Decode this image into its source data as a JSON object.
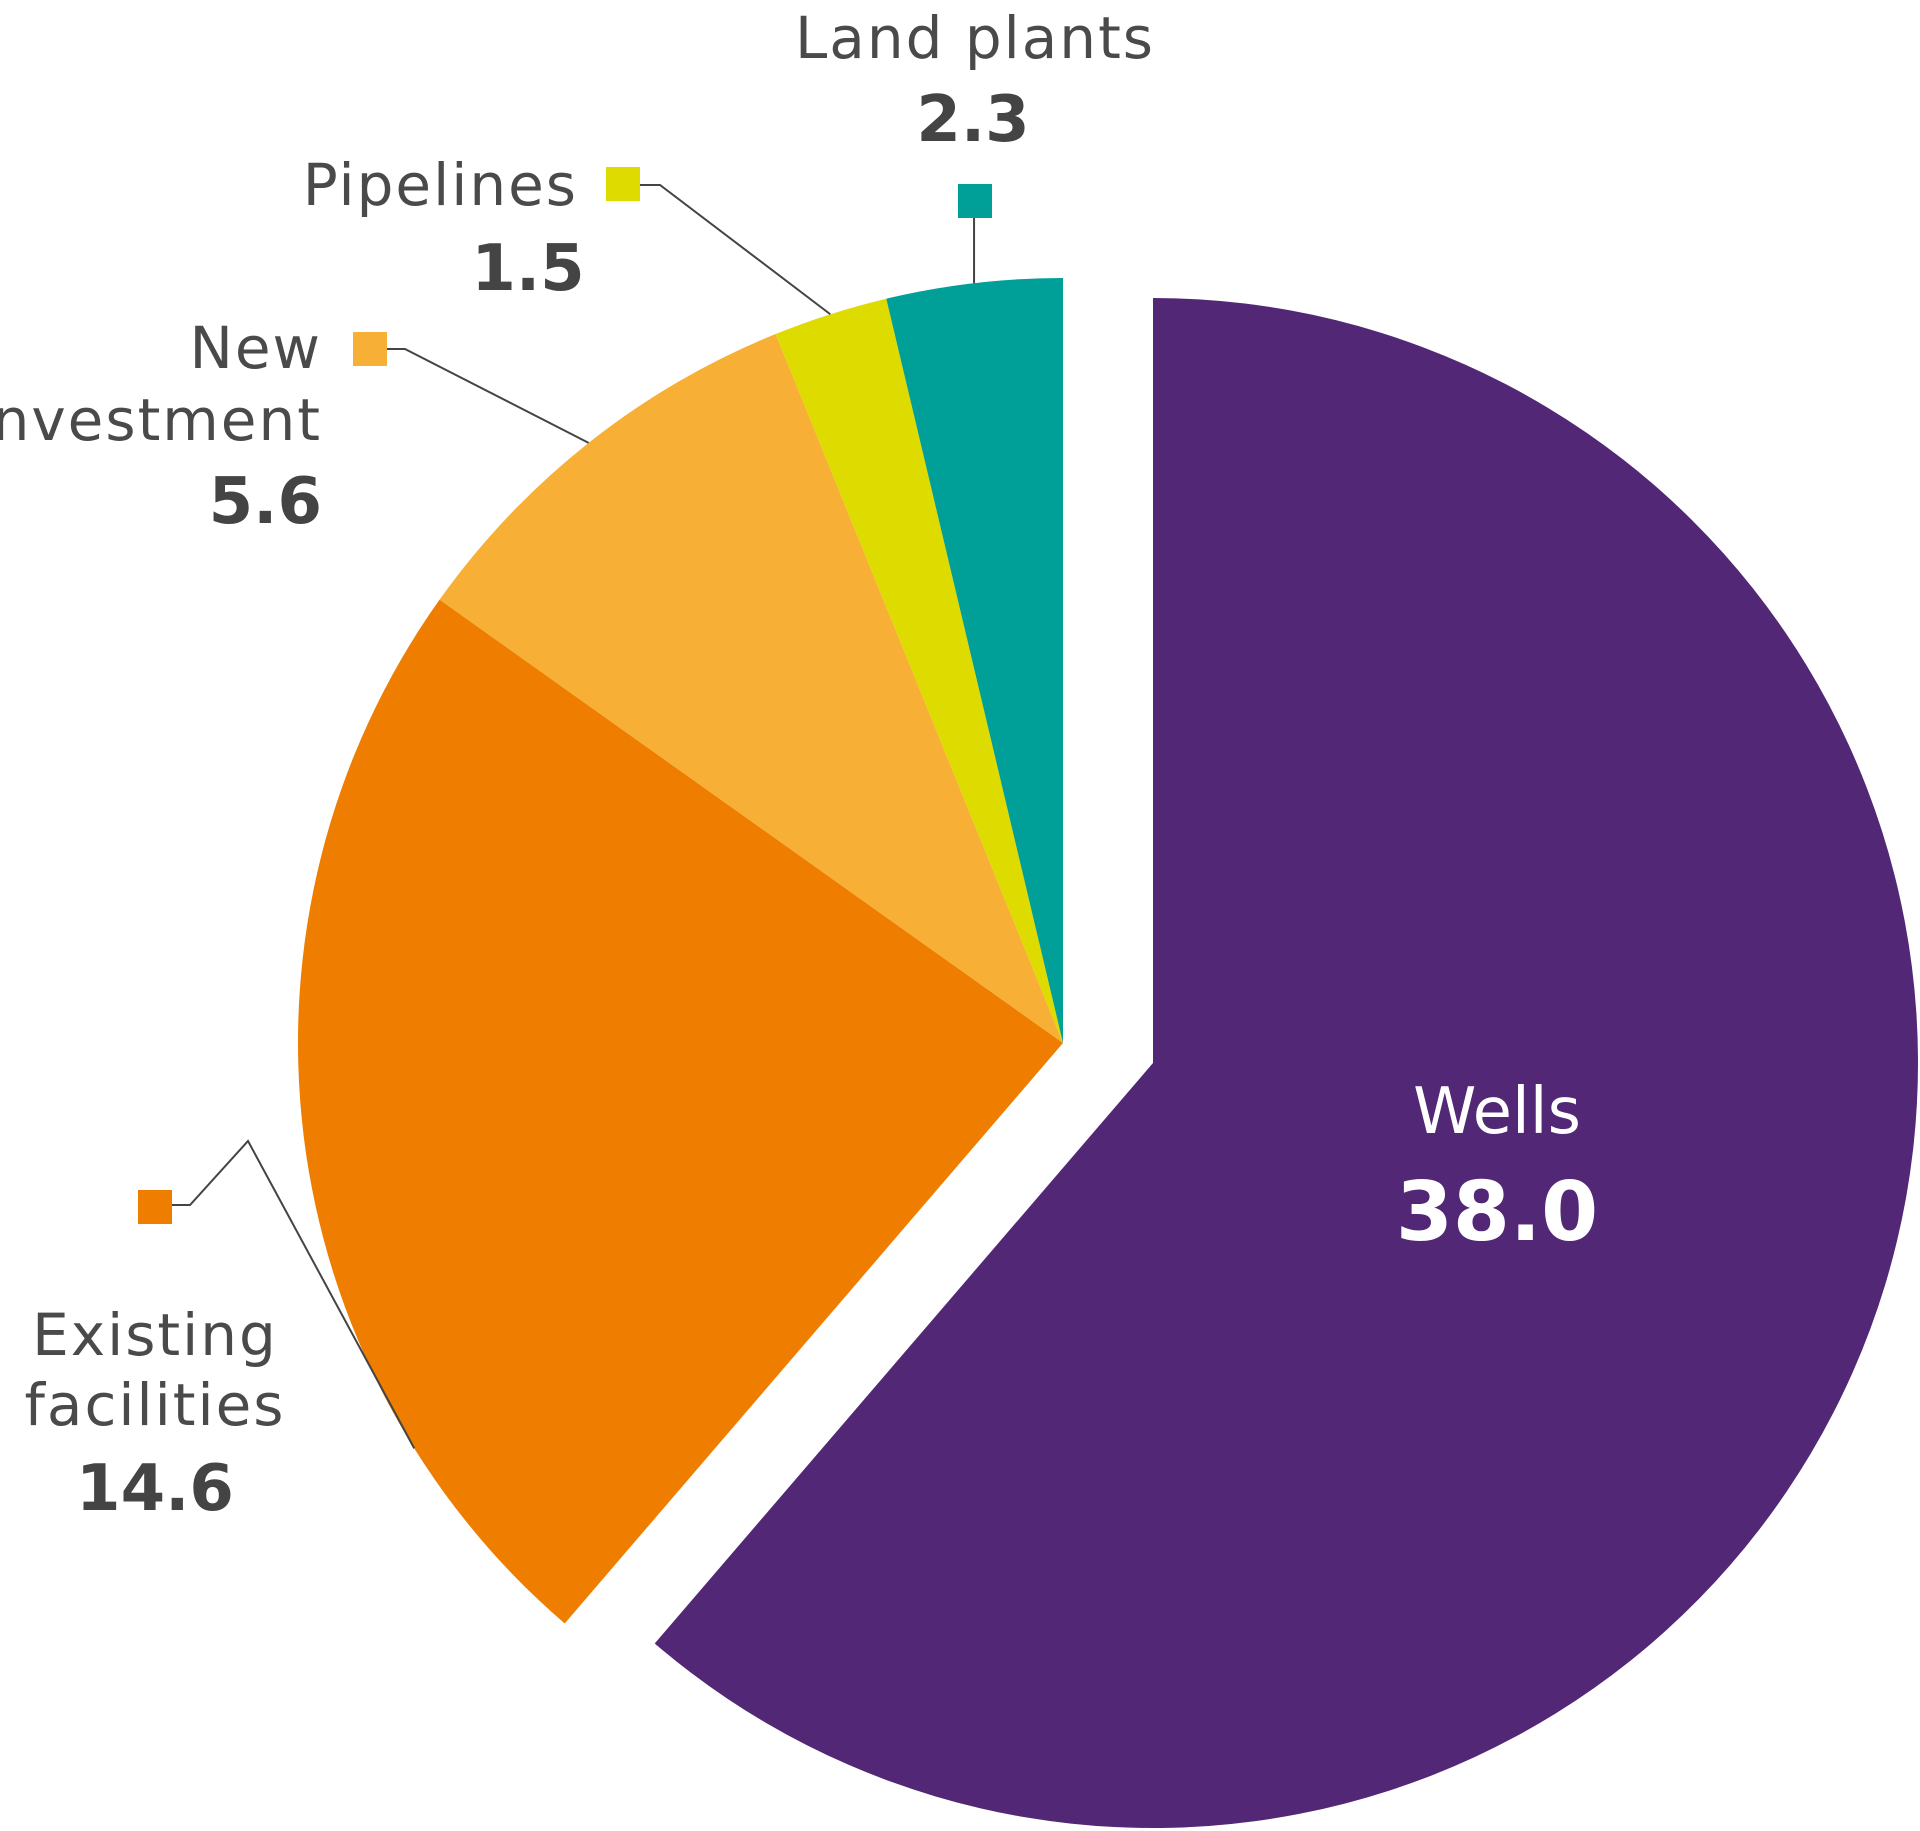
{
  "chart_data": {
    "type": "pie",
    "slices": [
      {
        "label": "Wells",
        "value": 38.0,
        "value_text": "38.0",
        "color": "#522776",
        "exploded": true
      },
      {
        "label": "Existing facilities",
        "label_lines": [
          "Existing",
          "facilities"
        ],
        "value": 14.6,
        "value_text": "14.6",
        "color": "#ee7d00"
      },
      {
        "label": "New investment",
        "label_lines": [
          "New",
          "investment"
        ],
        "value": 5.6,
        "value_text": "5.6",
        "color": "#f7b035"
      },
      {
        "label": "Pipelines",
        "value": 1.5,
        "value_text": "1.5",
        "color": "#dedb00"
      },
      {
        "label": "Land plants",
        "value": 2.3,
        "value_text": "2.3",
        "color": "#009f98"
      }
    ],
    "legend": "none (labels next to slices)"
  }
}
